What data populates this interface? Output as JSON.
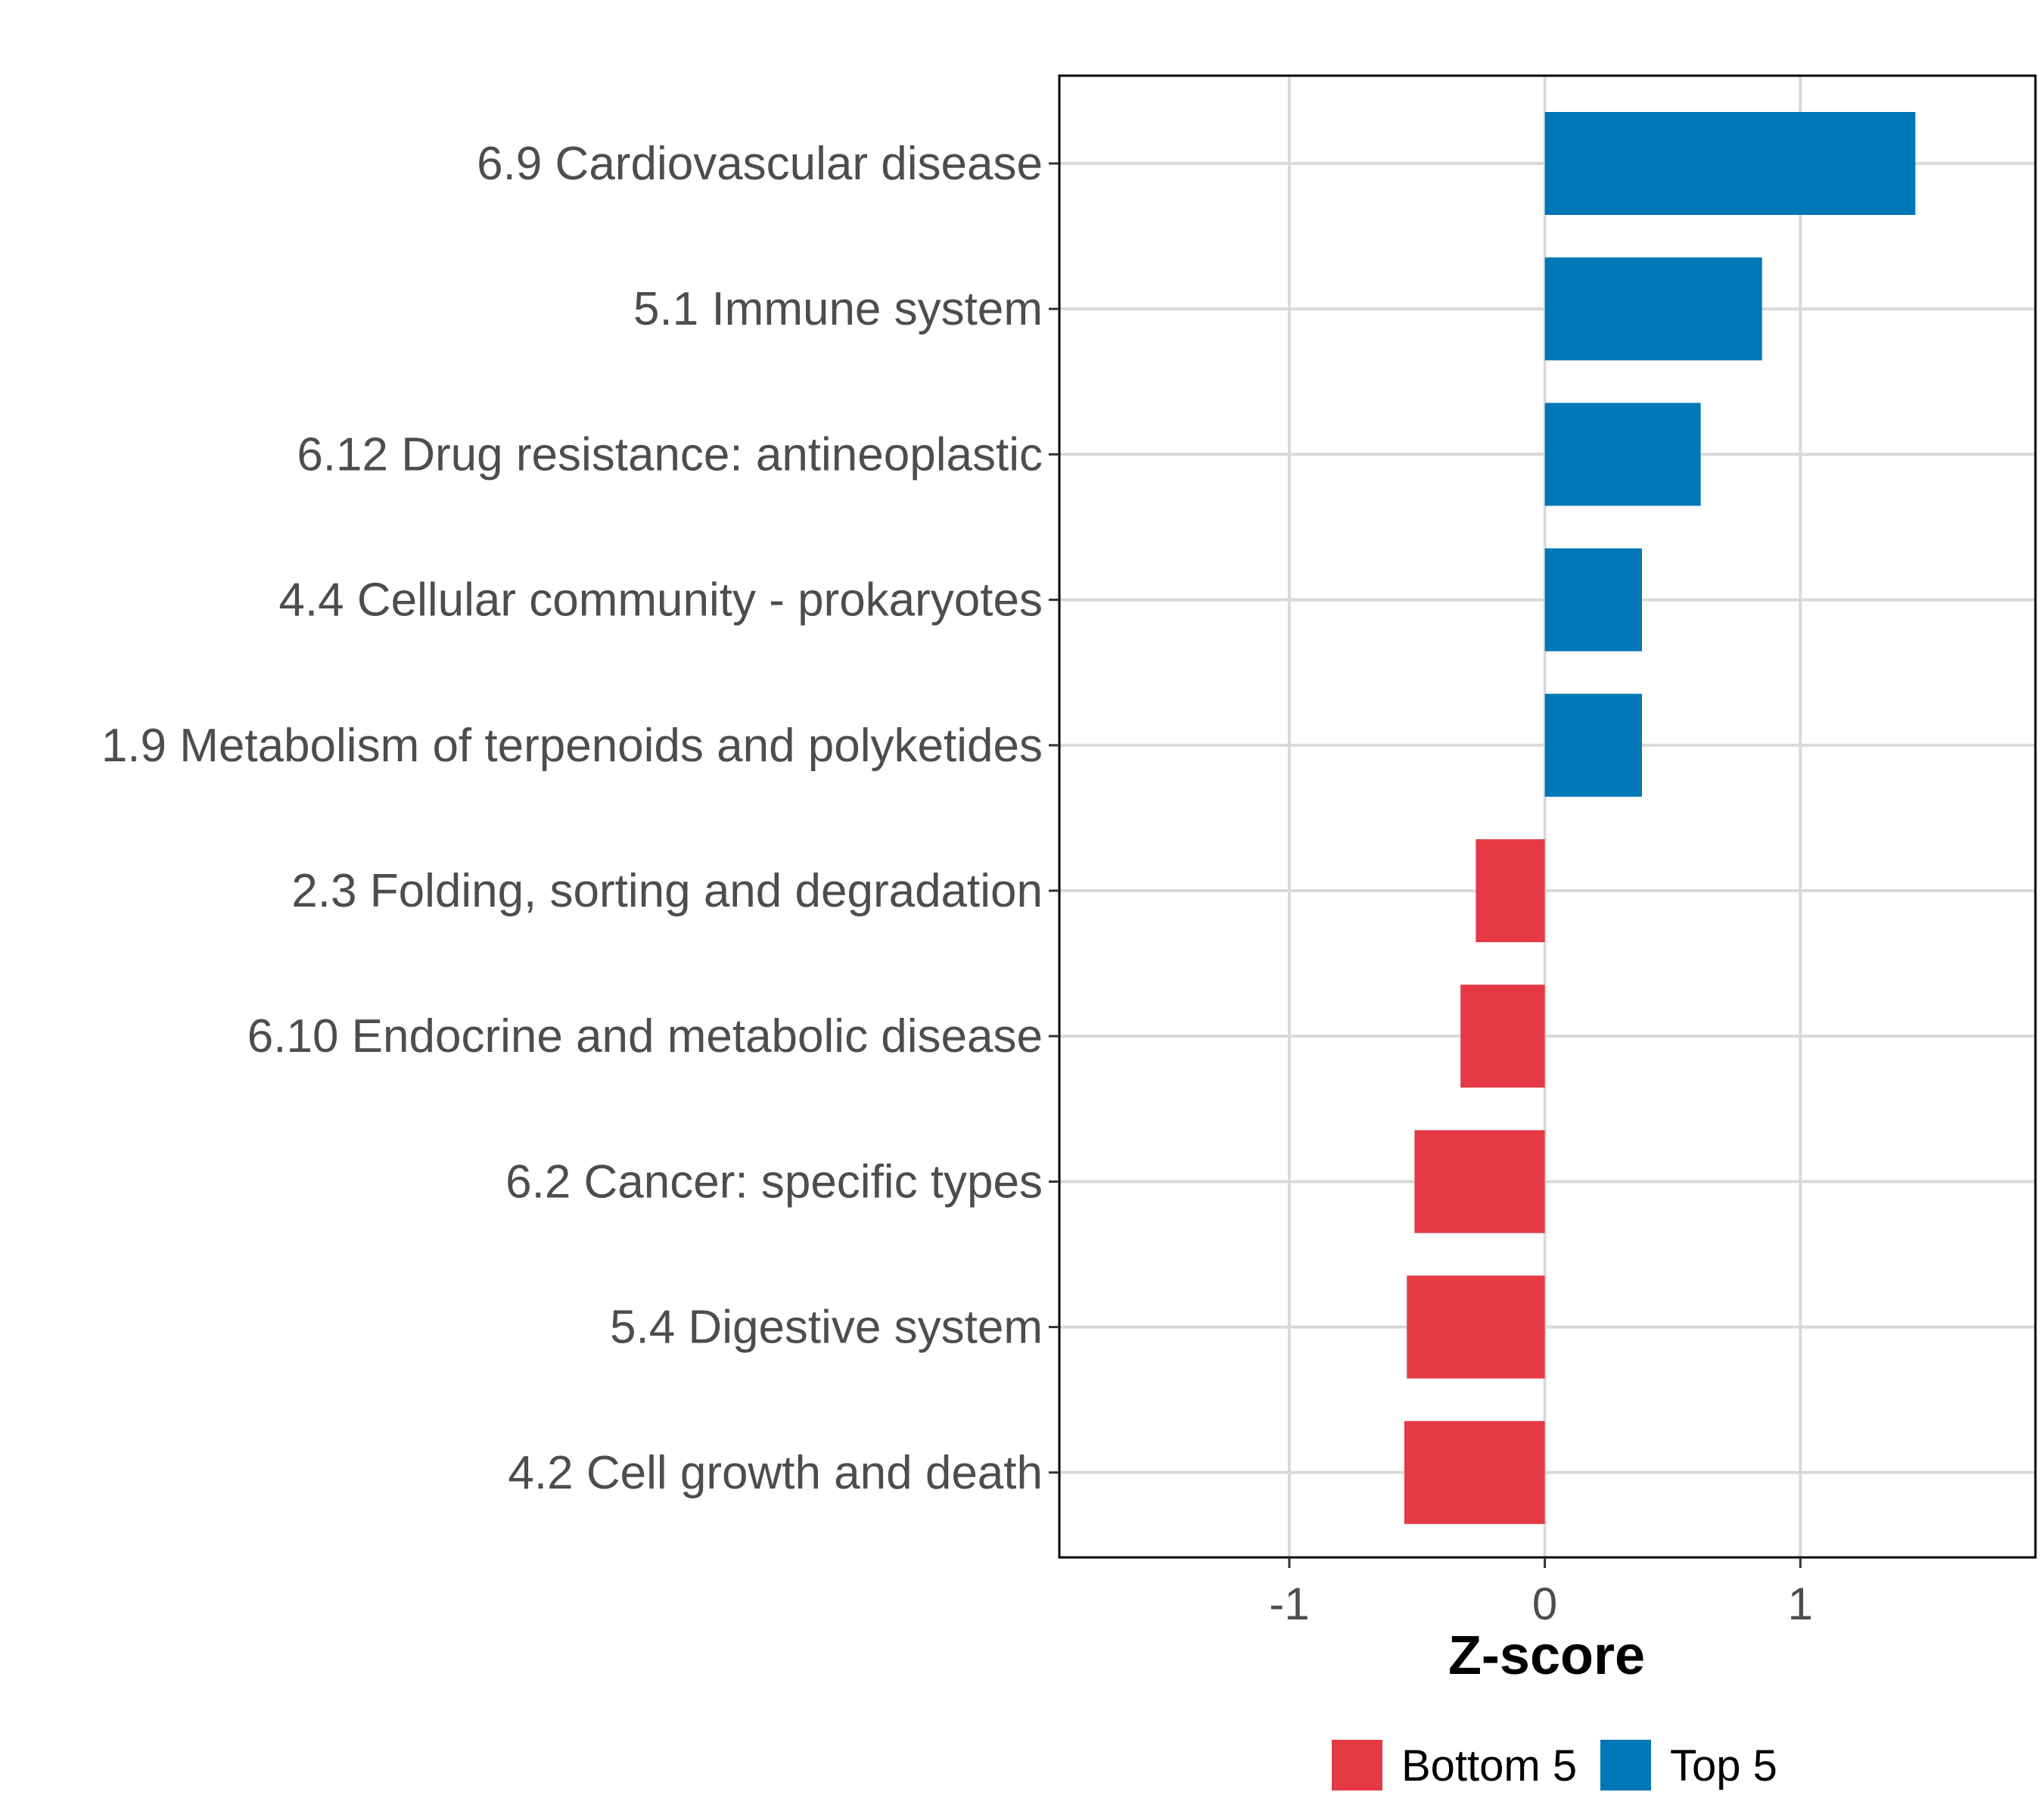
{
  "chart_data": {
    "type": "bar",
    "orientation": "horizontal",
    "title": "",
    "xlabel": "Z-score",
    "ylabel": "",
    "xlim": [
      -1.9,
      1.92
    ],
    "xticks": [
      -1,
      0,
      1
    ],
    "xtick_labels": [
      "-1",
      "0",
      "1"
    ],
    "grid": true,
    "legend_position": "bottom",
    "categories": [
      "6.9 Cardiovascular disease",
      "5.1 Immune system",
      "6.12 Drug resistance: antineoplastic",
      "4.4 Cellular community - prokaryotes",
      "1.9 Metabolism of terpenoids and polyketides",
      "2.3 Folding, sorting and degradation",
      "6.10 Endocrine and metabolic disease",
      "6.2 Cancer: specific types",
      "5.4 Digestive system",
      "4.2 Cell growth and death"
    ],
    "values": [
      1.45,
      0.85,
      0.61,
      0.38,
      0.38,
      -0.27,
      -0.33,
      -0.51,
      -0.54,
      -0.55
    ],
    "groups": [
      "Top 5",
      "Top 5",
      "Top 5",
      "Top 5",
      "Top 5",
      "Bottom 5",
      "Bottom 5",
      "Bottom 5",
      "Bottom 5",
      "Bottom 5"
    ],
    "legend": [
      {
        "label": "Bottom 5",
        "color": "#e63946"
      },
      {
        "label": "Top 5",
        "color": "#0077b6"
      }
    ]
  }
}
